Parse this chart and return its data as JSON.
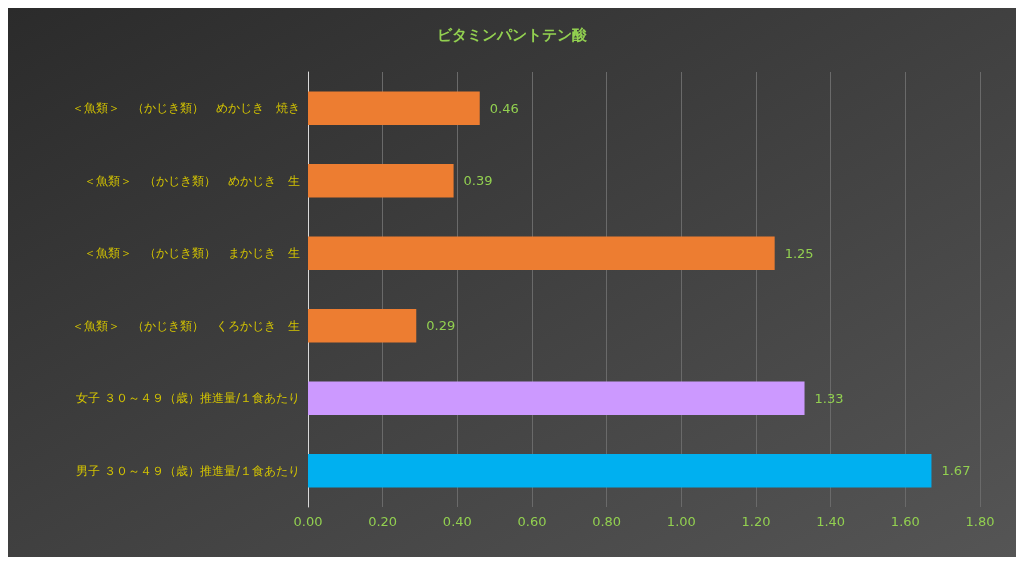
{
  "chart_data": {
    "type": "bar",
    "orientation": "horizontal",
    "title": "ビタミンパントテン酸",
    "categories": [
      "＜魚類＞　（かじき類）　めかじき　焼き",
      "＜魚類＞　（かじき類）　めかじき　生",
      "＜魚類＞　（かじき類）　まかじき　生",
      "＜魚類＞　（かじき類）　くろかじき　生",
      "女子 ３０～４９（歳）推進量/１食あたり",
      "男子 ３０～４９（歳）推進量/１食あたり"
    ],
    "values": [
      0.46,
      0.39,
      1.25,
      0.29,
      1.33,
      1.67
    ],
    "colors": [
      "#ed7d31",
      "#ed7d31",
      "#ed7d31",
      "#ed7d31",
      "#cc99ff",
      "#00b0f0"
    ],
    "xlim": [
      0,
      1.8
    ],
    "xticks": [
      {
        "value": 0,
        "label": "0.00"
      },
      {
        "value": 0.2,
        "label": "0.20"
      },
      {
        "value": 0.4,
        "label": "0.40"
      },
      {
        "value": 0.6,
        "label": "0.60"
      },
      {
        "value": 0.8,
        "label": "0.80"
      },
      {
        "value": 1,
        "label": "1.00"
      },
      {
        "value": 1.2,
        "label": "1.20"
      },
      {
        "value": 1.4,
        "label": "1.40"
      },
      {
        "value": 1.6,
        "label": "1.60"
      },
      {
        "value": 1.8,
        "label": "1.80"
      }
    ],
    "grid": "x",
    "data_labels": true
  }
}
